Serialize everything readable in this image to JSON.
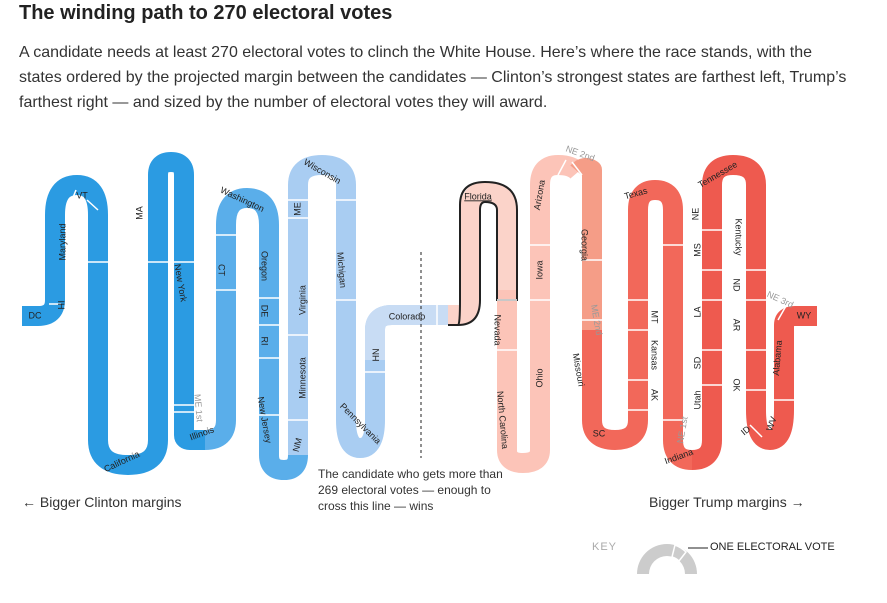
{
  "header": {
    "title": "The winding path to 270 electoral votes",
    "subtitle": "A candidate needs at least 270 electoral votes to clinch the White House. Here’s where the race stands, with the states ordered by the projected margin between the candidates — Clinton’s strongest states are farthest left, Trump’s farthest right — and sized by the number of electoral votes they will award."
  },
  "labels": {
    "clinton": "← Bigger Clinton margins",
    "trump": "Bigger Trump margins →",
    "threshold_note": "The candidate who gets more than 269 electoral votes — enough to cross this line — wins",
    "key": "KEY",
    "key_vote": "ONE ELECTORAL VOTE"
  },
  "colors": {
    "clinton_strong": "#2b9be2",
    "clinton_medium": "#5aaeea",
    "clinton_lean": "#a9cdf2",
    "clinton_tilt": "#c8dcf4",
    "tossup": "#fbd3c9",
    "trump_lean": "#fcc4b8",
    "trump_medium": "#f59d87",
    "trump_strong": "#f2685a",
    "trump_solid": "#ee5a4f",
    "key_gray": "#cccccc"
  },
  "states": [
    {
      "name": "DC",
      "tier": "clinton_strong"
    },
    {
      "name": "HI",
      "tier": "clinton_strong"
    },
    {
      "name": "Maryland",
      "tier": "clinton_strong"
    },
    {
      "name": "VT",
      "tier": "clinton_strong"
    },
    {
      "name": "MA",
      "tier": "clinton_strong"
    },
    {
      "name": "California",
      "tier": "clinton_strong"
    },
    {
      "name": "New York",
      "tier": "clinton_strong"
    },
    {
      "name": "ME 1st",
      "tier": "clinton_strong"
    },
    {
      "name": "Illinois",
      "tier": "clinton_strong"
    },
    {
      "name": "CT",
      "tier": "clinton_medium"
    },
    {
      "name": "Washington",
      "tier": "clinton_medium"
    },
    {
      "name": "Oregon",
      "tier": "clinton_medium"
    },
    {
      "name": "DE",
      "tier": "clinton_medium"
    },
    {
      "name": "RI",
      "tier": "clinton_medium"
    },
    {
      "name": "New Jersey",
      "tier": "clinton_medium"
    },
    {
      "name": "NM",
      "tier": "clinton_lean"
    },
    {
      "name": "Minnesota",
      "tier": "clinton_lean"
    },
    {
      "name": "Virginia",
      "tier": "clinton_lean"
    },
    {
      "name": "ME",
      "tier": "clinton_lean"
    },
    {
      "name": "Wisconsin",
      "tier": "clinton_lean"
    },
    {
      "name": "Michigan",
      "tier": "clinton_lean"
    },
    {
      "name": "Pennsylvania",
      "tier": "clinton_lean"
    },
    {
      "name": "NH",
      "tier": "clinton_tilt"
    },
    {
      "name": "Colorado",
      "tier": "clinton_tilt"
    },
    {
      "name": "Florida",
      "tier": "tossup"
    },
    {
      "name": "Nevada",
      "tier": "trump_lean"
    },
    {
      "name": "North Carolina",
      "tier": "trump_lean"
    },
    {
      "name": "Ohio",
      "tier": "trump_lean"
    },
    {
      "name": "Iowa",
      "tier": "trump_lean"
    },
    {
      "name": "Arizona",
      "tier": "trump_lean"
    },
    {
      "name": "NE 2nd",
      "tier": "trump_medium"
    },
    {
      "name": "Georgia",
      "tier": "trump_medium"
    },
    {
      "name": "ME 2nd",
      "tier": "trump_medium"
    },
    {
      "name": "Missouri",
      "tier": "trump_strong"
    },
    {
      "name": "SC",
      "tier": "trump_strong"
    },
    {
      "name": "AK",
      "tier": "trump_strong"
    },
    {
      "name": "Kansas",
      "tier": "trump_strong"
    },
    {
      "name": "MT",
      "tier": "trump_strong"
    },
    {
      "name": "Texas",
      "tier": "trump_strong"
    },
    {
      "name": "Indiana",
      "tier": "trump_strong"
    },
    {
      "name": "NE 1st",
      "tier": "trump_strong"
    },
    {
      "name": "Utah",
      "tier": "trump_solid"
    },
    {
      "name": "SD",
      "tier": "trump_solid"
    },
    {
      "name": "LA",
      "tier": "trump_solid"
    },
    {
      "name": "MS",
      "tier": "trump_solid"
    },
    {
      "name": "NE",
      "tier": "trump_solid"
    },
    {
      "name": "Tennessee",
      "tier": "trump_solid"
    },
    {
      "name": "Kentucky",
      "tier": "trump_solid"
    },
    {
      "name": "ND",
      "tier": "trump_solid"
    },
    {
      "name": "AR",
      "tier": "trump_solid"
    },
    {
      "name": "OK",
      "tier": "trump_solid"
    },
    {
      "name": "ID",
      "tier": "trump_solid"
    },
    {
      "name": "WV",
      "tier": "trump_solid"
    },
    {
      "name": "Alabama",
      "tier": "trump_solid"
    },
    {
      "name": "NE 3rd",
      "tier": "trump_solid"
    },
    {
      "name": "WY",
      "tier": "trump_solid"
    }
  ]
}
